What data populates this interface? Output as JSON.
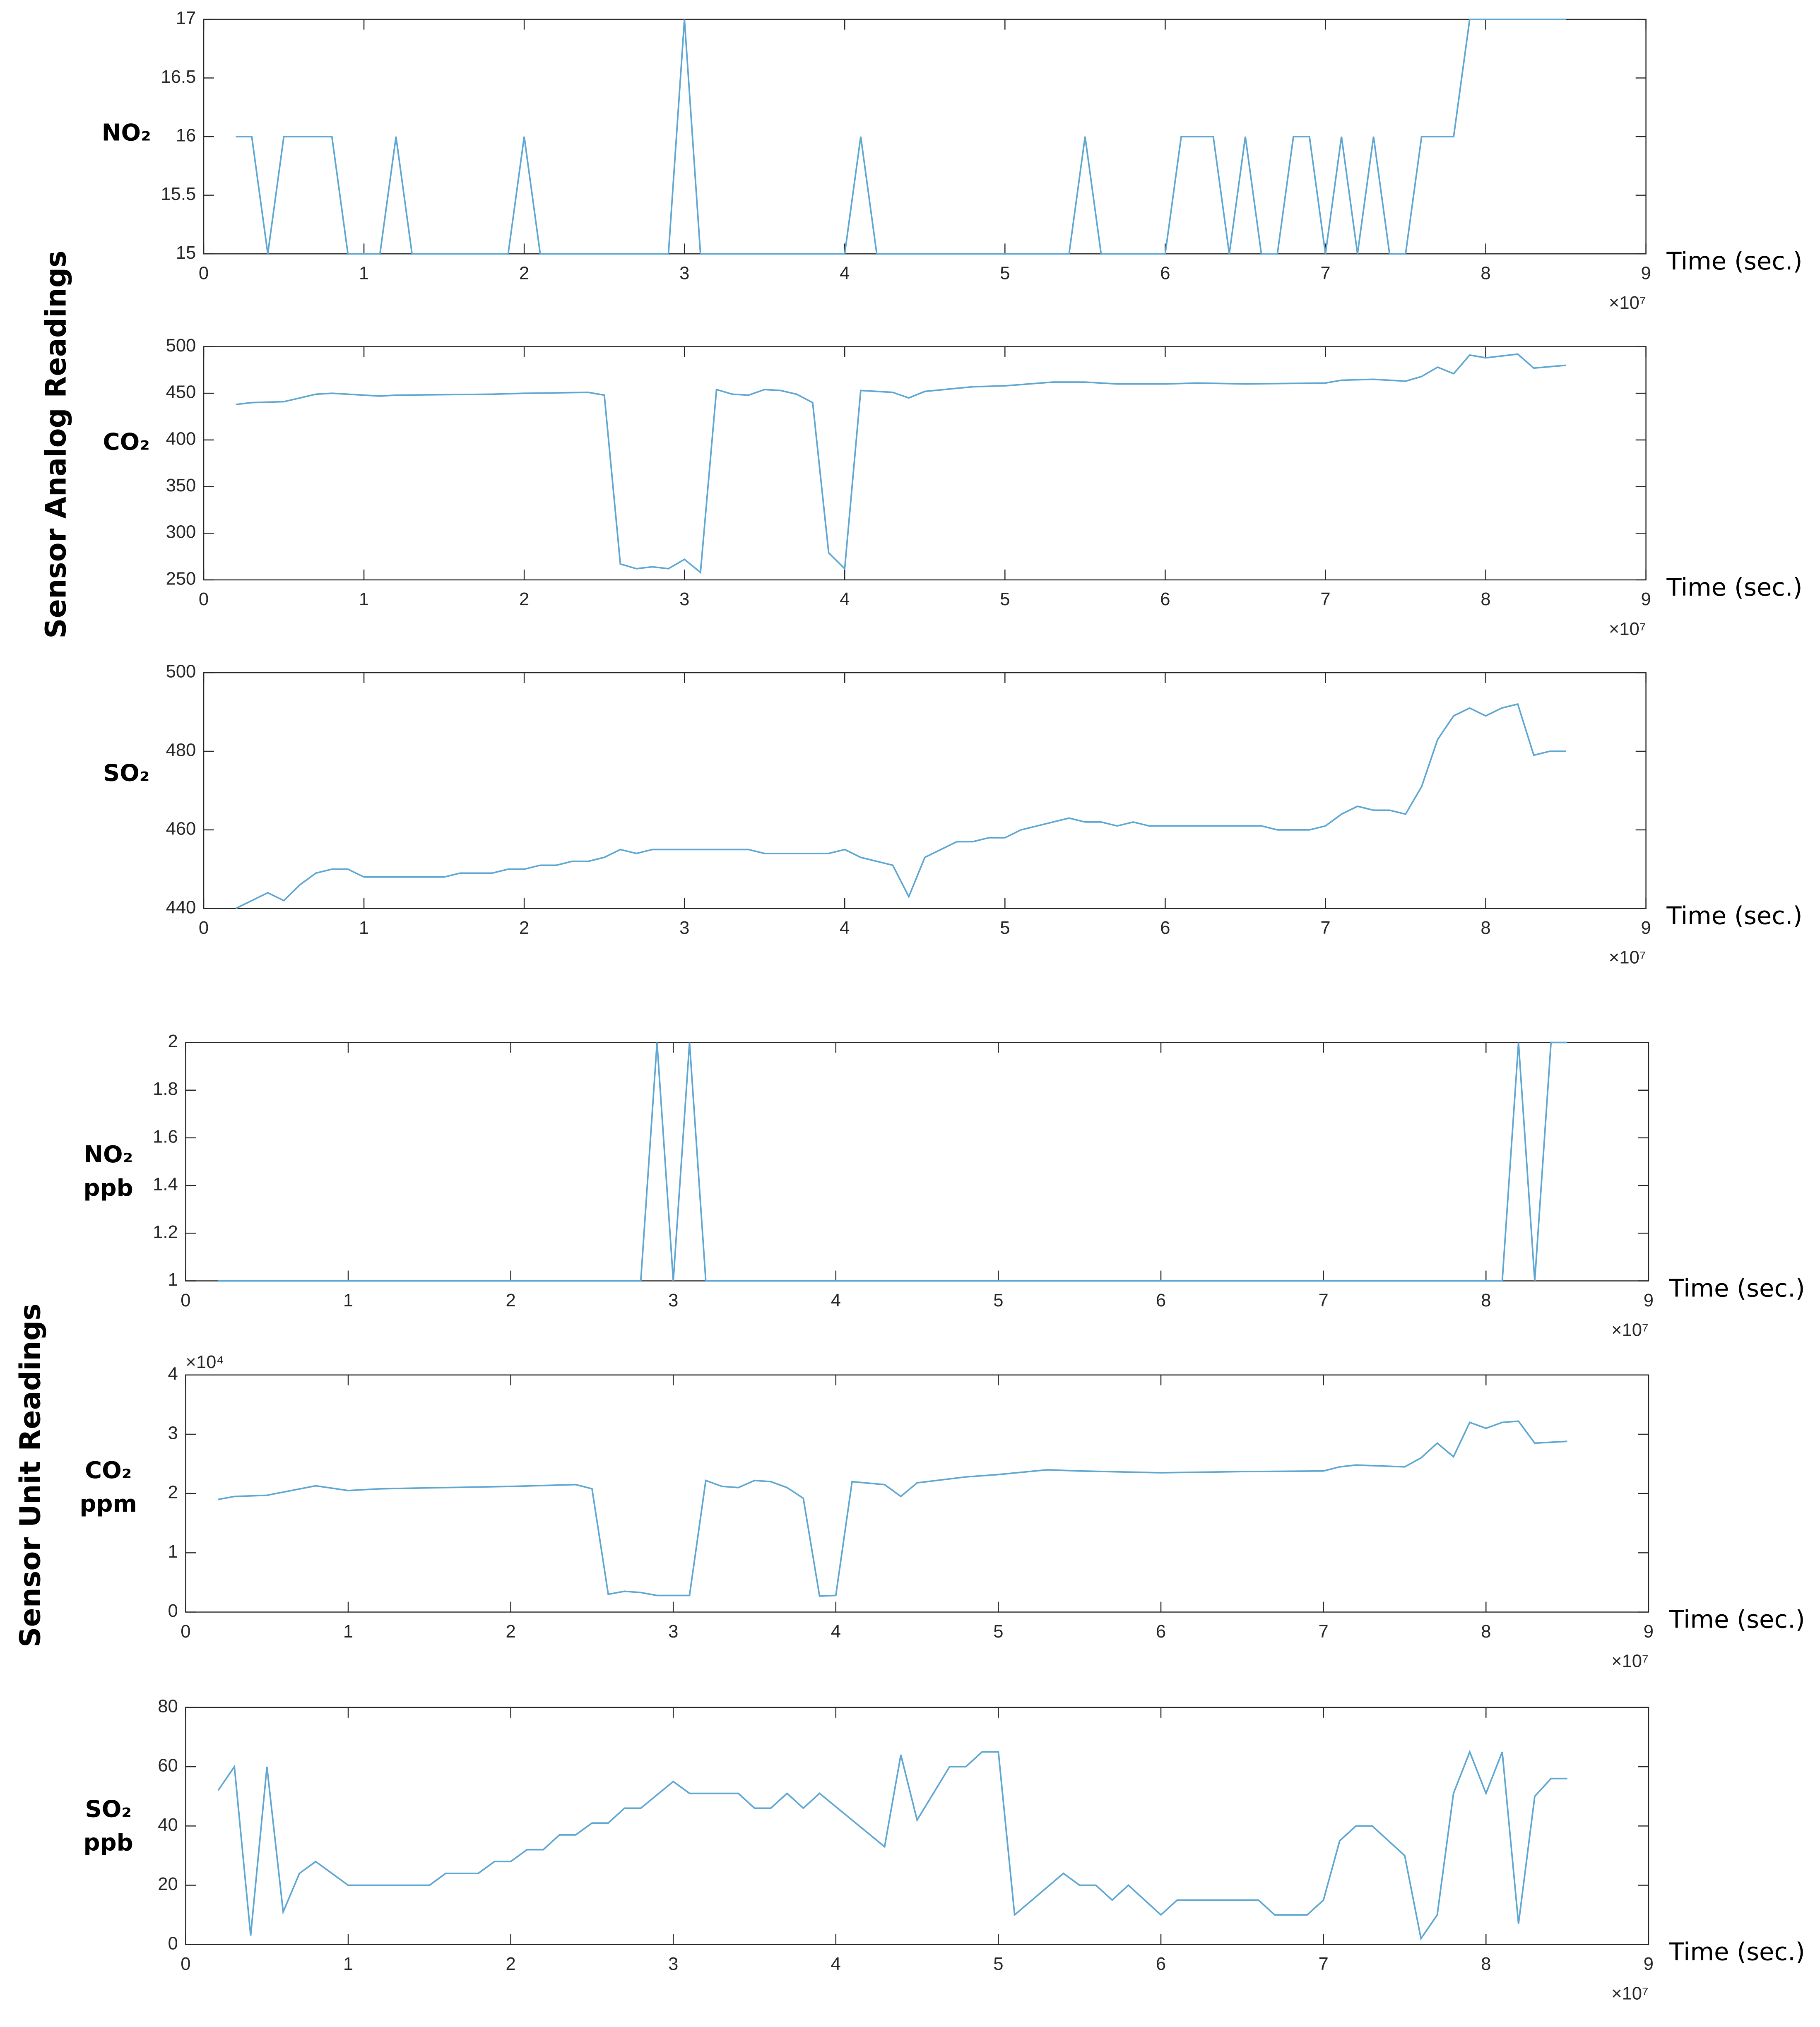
{
  "panel_labels": [
    "Sensor Analog Readings",
    "Sensor Unit Readings"
  ],
  "chart_data": [
    {
      "type": "line",
      "y_label": [
        "NO₂"
      ],
      "x_label": "Time (sec.)",
      "x_multiplier": "×10⁷",
      "color": "#5ea7d3",
      "xlim": [
        0,
        9
      ],
      "xticks": [
        0,
        1,
        2,
        3,
        4,
        5,
        6,
        7,
        8,
        9
      ],
      "ylim": [
        15,
        17
      ],
      "yticks": [
        15,
        15.5,
        16,
        16.5,
        17
      ],
      "x": [
        0.2,
        0.3,
        0.4,
        0.5,
        0.8,
        0.9,
        1.1,
        1.2,
        1.3,
        1.9,
        2.0,
        2.1,
        2.9,
        3.0,
        3.1,
        4.0,
        4.1,
        4.2,
        5.4,
        5.5,
        5.6,
        6.0,
        6.1,
        6.3,
        6.4,
        6.5,
        6.6,
        6.7,
        6.8,
        6.9,
        7.0,
        7.1,
        7.2,
        7.3,
        7.4,
        7.5,
        7.6,
        7.8,
        7.9,
        8.5
      ],
      "values": [
        16,
        16,
        15,
        16,
        16,
        15,
        15,
        16,
        15,
        15,
        16,
        15,
        15,
        17,
        15,
        15,
        16,
        15,
        15,
        16,
        15,
        15,
        16,
        16,
        15,
        16,
        15,
        15,
        16,
        16,
        15,
        16,
        15,
        16,
        15,
        15,
        16,
        16,
        17,
        17
      ]
    },
    {
      "type": "line",
      "y_label": [
        "CO₂"
      ],
      "x_label": "Time (sec.)",
      "x_multiplier": "×10⁷",
      "color": "#5ea7d3",
      "xlim": [
        0,
        9
      ],
      "xticks": [
        0,
        1,
        2,
        3,
        4,
        5,
        6,
        7,
        8,
        9
      ],
      "ylim": [
        250,
        500
      ],
      "yticks": [
        250,
        300,
        350,
        400,
        450,
        500
      ],
      "x": [
        0.2,
        0.3,
        0.5,
        0.6,
        0.7,
        0.8,
        1.1,
        1.2,
        1.8,
        2.0,
        2.4,
        2.5,
        2.6,
        2.7,
        2.8,
        2.9,
        3.0,
        3.1,
        3.2,
        3.3,
        3.4,
        3.5,
        3.6,
        3.7,
        3.8,
        3.9,
        4.0,
        4.1,
        4.3,
        4.4,
        4.5,
        4.8,
        5.0,
        5.3,
        5.5,
        5.7,
        6.0,
        6.2,
        6.5,
        7.0,
        7.1,
        7.3,
        7.5,
        7.6,
        7.7,
        7.8,
        7.9,
        8.0,
        8.1,
        8.2,
        8.3,
        8.5
      ],
      "values": [
        438,
        440,
        441,
        445,
        449,
        450,
        447,
        448,
        449,
        450,
        451,
        448,
        267,
        262,
        264,
        262,
        272,
        258,
        454,
        449,
        448,
        454,
        453,
        449,
        440,
        279,
        262,
        453,
        451,
        445,
        452,
        457,
        458,
        462,
        462,
        460,
        460,
        461,
        460,
        461,
        464,
        465,
        463,
        468,
        478,
        471,
        491,
        488,
        490,
        492,
        477,
        480
      ]
    },
    {
      "type": "line",
      "y_label": [
        "SO₂"
      ],
      "x_label": "Time (sec.)",
      "x_multiplier": "×10⁷",
      "color": "#5ea7d3",
      "xlim": [
        0,
        9
      ],
      "xticks": [
        0,
        1,
        2,
        3,
        4,
        5,
        6,
        7,
        8,
        9
      ],
      "ylim": [
        440,
        500
      ],
      "yticks": [
        440,
        460,
        480,
        500
      ],
      "x": [
        0.2,
        0.4,
        0.5,
        0.6,
        0.7,
        0.8,
        0.9,
        1.0,
        1.5,
        1.6,
        1.8,
        1.9,
        2.0,
        2.1,
        2.2,
        2.3,
        2.4,
        2.5,
        2.6,
        2.7,
        2.8,
        3.4,
        3.5,
        3.9,
        4.0,
        4.1,
        4.3,
        4.4,
        4.5,
        4.7,
        4.8,
        4.9,
        5.0,
        5.1,
        5.4,
        5.5,
        5.6,
        5.7,
        5.8,
        5.9,
        6.6,
        6.7,
        6.9,
        7.0,
        7.1,
        7.2,
        7.3,
        7.4,
        7.5,
        7.6,
        7.7,
        7.8,
        7.9,
        8.0,
        8.1,
        8.2,
        8.3,
        8.4,
        8.5
      ],
      "values": [
        440,
        444,
        442,
        446,
        449,
        450,
        450,
        448,
        448,
        449,
        449,
        450,
        450,
        451,
        451,
        452,
        452,
        453,
        455,
        454,
        455,
        455,
        454,
        454,
        455,
        453,
        451,
        443,
        453,
        457,
        457,
        458,
        458,
        460,
        463,
        462,
        462,
        461,
        462,
        461,
        461,
        460,
        460,
        461,
        464,
        466,
        465,
        465,
        464,
        471,
        483,
        489,
        491,
        489,
        491,
        492,
        479,
        480,
        480
      ]
    },
    {
      "type": "line",
      "y_label": [
        "NO₂",
        "ppb"
      ],
      "x_label": "Time (sec.)",
      "x_multiplier": "×10⁷",
      "color": "#5ea7d3",
      "xlim": [
        0,
        9
      ],
      "xticks": [
        0,
        1,
        2,
        3,
        4,
        5,
        6,
        7,
        8,
        9
      ],
      "ylim": [
        1,
        2
      ],
      "yticks": [
        1,
        1.2,
        1.4,
        1.6,
        1.8,
        2
      ],
      "x": [
        0.2,
        2.8,
        2.9,
        3.0,
        3.1,
        3.2,
        8.1,
        8.2,
        8.3,
        8.4,
        8.5
      ],
      "values": [
        1,
        1,
        2,
        1,
        2,
        1,
        1,
        2,
        1,
        2,
        2
      ]
    },
    {
      "type": "line",
      "y_label": [
        "CO₂",
        "ppm"
      ],
      "x_label": "Time (sec.)",
      "x_multiplier": "×10⁷",
      "y_multiplier": "×10⁴",
      "color": "#5ea7d3",
      "xlim": [
        0,
        9
      ],
      "xticks": [
        0,
        1,
        2,
        3,
        4,
        5,
        6,
        7,
        8,
        9
      ],
      "ylim": [
        0,
        4
      ],
      "yticks": [
        0,
        1,
        2,
        3,
        4
      ],
      "x": [
        0.2,
        0.3,
        0.5,
        0.8,
        1.0,
        1.2,
        2.0,
        2.4,
        2.5,
        2.6,
        2.7,
        2.8,
        2.9,
        3.1,
        3.2,
        3.3,
        3.4,
        3.5,
        3.6,
        3.7,
        3.8,
        3.9,
        4.0,
        4.1,
        4.3,
        4.4,
        4.5,
        4.8,
        5.0,
        5.3,
        5.5,
        6.0,
        6.5,
        7.0,
        7.1,
        7.2,
        7.5,
        7.6,
        7.7,
        7.8,
        7.9,
        8.0,
        8.1,
        8.2,
        8.3,
        8.5
      ],
      "values": [
        1.9,
        1.95,
        1.97,
        2.13,
        2.05,
        2.08,
        2.12,
        2.15,
        2.08,
        0.3,
        0.35,
        0.33,
        0.28,
        0.28,
        2.22,
        2.12,
        2.1,
        2.22,
        2.2,
        2.1,
        1.92,
        0.27,
        0.28,
        2.2,
        2.15,
        1.95,
        2.18,
        2.28,
        2.32,
        2.4,
        2.38,
        2.35,
        2.37,
        2.38,
        2.45,
        2.48,
        2.45,
        2.6,
        2.85,
        2.62,
        3.2,
        3.1,
        3.2,
        3.22,
        2.85,
        2.88
      ]
    },
    {
      "type": "line",
      "y_label": [
        "SO₂",
        "ppb"
      ],
      "x_label": "Time (sec.)",
      "x_multiplier": "×10⁷",
      "color": "#5ea7d3",
      "xlim": [
        0,
        9
      ],
      "xticks": [
        0,
        1,
        2,
        3,
        4,
        5,
        6,
        7,
        8,
        9
      ],
      "ylim": [
        0,
        80
      ],
      "yticks": [
        0,
        20,
        40,
        60,
        80
      ],
      "x": [
        0.2,
        0.3,
        0.4,
        0.5,
        0.6,
        0.7,
        0.8,
        1.0,
        1.5,
        1.6,
        1.8,
        1.9,
        2.0,
        2.1,
        2.2,
        2.3,
        2.4,
        2.5,
        2.6,
        2.7,
        2.8,
        3.0,
        3.1,
        3.4,
        3.5,
        3.6,
        3.7,
        3.8,
        3.9,
        4.3,
        4.4,
        4.5,
        4.7,
        4.8,
        4.9,
        5.0,
        5.1,
        5.4,
        5.5,
        5.6,
        5.7,
        5.8,
        6.0,
        6.1,
        6.6,
        6.7,
        6.9,
        7.0,
        7.1,
        7.2,
        7.3,
        7.5,
        7.6,
        7.7,
        7.8,
        7.9,
        8.0,
        8.1,
        8.2,
        8.3,
        8.4,
        8.5
      ],
      "values": [
        52,
        60,
        3,
        60,
        11,
        24,
        28,
        20,
        20,
        24,
        24,
        28,
        28,
        32,
        32,
        37,
        37,
        41,
        41,
        46,
        46,
        55,
        51,
        51,
        46,
        46,
        51,
        46,
        51,
        33,
        64,
        42,
        60,
        60,
        65,
        65,
        10,
        24,
        20,
        20,
        15,
        20,
        10,
        15,
        15,
        10,
        10,
        15,
        35,
        40,
        40,
        30,
        2,
        10,
        51,
        65,
        51,
        65,
        7,
        50,
        56,
        56
      ]
    }
  ]
}
